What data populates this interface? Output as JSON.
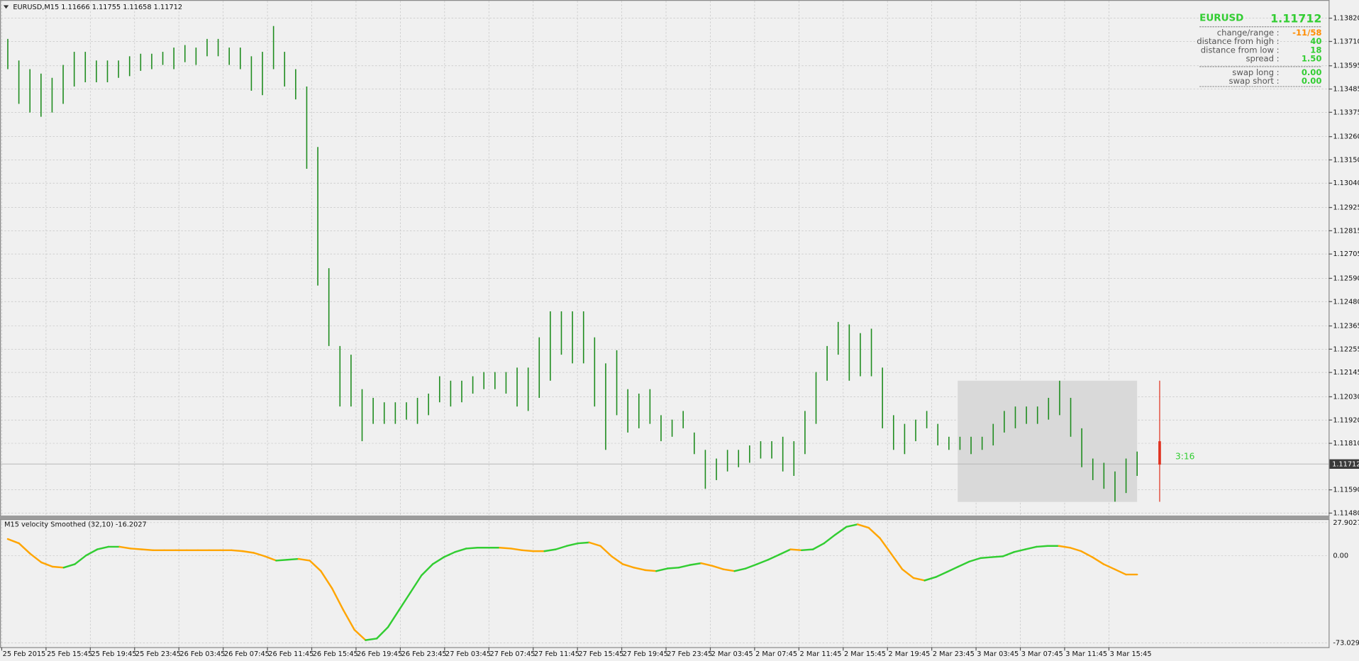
{
  "chart_data": {
    "type": "ohlc",
    "title": "EURUSD,M15  1.11666 1.11755 1.11658 1.11712",
    "x_labels": [
      "25 Feb 2015",
      "25 Feb 15:45",
      "25 Feb 19:45",
      "25 Feb 23:45",
      "26 Feb 03:45",
      "26 Feb 07:45",
      "26 Feb 11:45",
      "26 Feb 15:45",
      "26 Feb 19:45",
      "26 Feb 23:45",
      "27 Feb 03:45",
      "27 Feb 07:45",
      "27 Feb 11:45",
      "27 Feb 15:45",
      "27 Feb 19:45",
      "27 Feb 23:45",
      "2 Mar 03:45",
      "2 Mar 07:45",
      "2 Mar 11:45",
      "2 Mar 15:45",
      "2 Mar 19:45",
      "2 Mar 23:45",
      "3 Mar 03:45",
      "3 Mar 07:45",
      "3 Mar 11:45",
      "3 Mar 15:45"
    ],
    "high": [
      1.13722,
      1.1362,
      1.13579,
      1.13558,
      1.13538,
      1.13599,
      1.13661,
      1.13661,
      1.1362,
      1.1362,
      1.1362,
      1.1364,
      1.13652,
      1.13652,
      1.13661,
      1.13681,
      1.13693,
      1.13681,
      1.13722,
      1.13722,
      1.13681,
      1.13681,
      1.1364,
      1.13661,
      1.13783,
      1.13661,
      1.13579,
      1.13497,
      1.13211,
      1.12638,
      1.1227,
      1.12229,
      1.12066,
      1.12025,
      1.12004,
      1.12004,
      1.12004,
      1.12025,
      1.12045,
      1.12127,
      1.12106,
      1.12106,
      1.12127,
      1.12147,
      1.12147,
      1.12147,
      1.12168,
      1.12168,
      1.12311,
      1.12434,
      1.12434,
      1.12434,
      1.12434,
      1.12311,
      1.12188,
      1.1225,
      1.12066,
      1.12045,
      1.12066,
      1.11943,
      1.11922,
      1.11963,
      1.11861,
      1.11779,
      1.11738,
      1.11779,
      1.11779,
      1.118,
      1.1182,
      1.1182,
      1.11841,
      1.1182,
      1.11963,
      1.12147,
      1.1227,
      1.12384,
      1.12372,
      1.12331,
      1.12352,
      1.12168,
      1.11943,
      1.11902,
      1.11922,
      1.11963,
      1.11902,
      1.11841,
      1.11841,
      1.11841,
      1.11841,
      1.11902,
      1.11963,
      1.11984,
      1.11984,
      1.11984,
      1.12025,
      1.12106,
      1.12025,
      1.11881,
      1.11738,
      1.11718,
      1.11677,
      1.11738,
      1.11771
    ],
    "low": [
      1.13579,
      1.13415,
      1.13374,
      1.13354,
      1.13374,
      1.13415,
      1.13497,
      1.13517,
      1.13517,
      1.13517,
      1.13538,
      1.13546,
      1.13571,
      1.13579,
      1.13599,
      1.13579,
      1.13612,
      1.13599,
      1.1364,
      1.1364,
      1.13599,
      1.13579,
      1.13477,
      1.13456,
      1.13579,
      1.13497,
      1.13436,
      1.13108,
      1.12556,
      1.1227,
      1.11984,
      1.11984,
      1.1182,
      1.11902,
      1.11902,
      1.11902,
      1.11922,
      1.11902,
      1.11943,
      1.12004,
      1.11984,
      1.12004,
      1.12045,
      1.12066,
      1.12066,
      1.12045,
      1.11984,
      1.11963,
      1.12025,
      1.12106,
      1.12229,
      1.12188,
      1.12188,
      1.11984,
      1.11779,
      1.11943,
      1.11861,
      1.11881,
      1.11902,
      1.1182,
      1.11841,
      1.11881,
      1.11759,
      1.11595,
      1.11636,
      1.11677,
      1.11697,
      1.11718,
      1.11738,
      1.11738,
      1.11677,
      1.11656,
      1.11759,
      1.11902,
      1.12106,
      1.12229,
      1.12106,
      1.12127,
      1.12127,
      1.11881,
      1.11779,
      1.11759,
      1.1182,
      1.11881,
      1.118,
      1.11779,
      1.11779,
      1.11759,
      1.11779,
      1.118,
      1.11861,
      1.11881,
      1.11902,
      1.11902,
      1.11922,
      1.11943,
      1.11841,
      1.11697,
      1.11636,
      1.11595,
      1.11534,
      1.11575,
      1.11656
    ],
    "color": "#1e8c1e",
    "ylim": [
      1.11468,
      1.13906
    ],
    "yticks": [
      {
        "value": 1.1382,
        "label": "1.13820"
      },
      {
        "value": 1.1371,
        "label": "1.13710"
      },
      1.13595,
      1.13485,
      1.13375,
      {
        "value": 1.1326,
        "label": "1.13260"
      },
      {
        "value": 1.1315,
        "label": "1.13150"
      },
      {
        "value": 1.1304,
        "label": "1.13040"
      },
      1.12925,
      1.12815,
      1.12705,
      {
        "value": 1.1259,
        "label": "1.12590"
      },
      {
        "value": 1.1248,
        "label": "1.12480"
      },
      1.12365,
      1.12255,
      1.12145,
      {
        "value": 1.1203,
        "label": "1.12030"
      },
      {
        "value": 1.1192,
        "label": "1.11920"
      },
      {
        "value": 1.1181,
        "label": "1.11810"
      },
      {
        "value": 1.1159,
        "label": "1.11590"
      },
      {
        "value": 1.1148,
        "label": "1.11480"
      }
    ],
    "grid": true,
    "last_price": 1.11712,
    "countdown": "3:16",
    "countdown_color": "#32cd32",
    "range_box": {
      "high": 1.12106,
      "low": 1.11533,
      "color": "#d9d9d9"
    },
    "info_panel": {
      "symbol": "EURUSD",
      "price": 1.11712,
      "color": "#32cd32",
      "rows": [
        {
          "label": "change/range :",
          "value": "-11/58",
          "color": "#ff8c00"
        },
        {
          "label": "distance from high :",
          "value": 40,
          "color": "#32cd32"
        },
        {
          "label": "distance from low :",
          "value": 18,
          "color": "#32cd32"
        },
        {
          "label": "spread :",
          "value": "1.50",
          "color": "#32cd32"
        }
      ],
      "swap_rows": [
        {
          "label": "swap long :",
          "value": "0.00",
          "color": "#32cd32"
        },
        {
          "label": "swap short :",
          "value": "0.00",
          "color": "#32cd32"
        }
      ]
    },
    "indicator": {
      "type": "line",
      "title": "M15 velocity Smoothed (32,10) -16.2027",
      "values": [
        14.1,
        10.5,
        1.8,
        -5.5,
        -9.1,
        -9.9,
        -7.0,
        0.3,
        5.4,
        7.6,
        7.6,
        6.1,
        5.4,
        4.7,
        4.7,
        4.7,
        4.7,
        4.7,
        4.7,
        4.7,
        4.7,
        3.9,
        2.5,
        -0.4,
        -4.0,
        -3.3,
        -2.6,
        -4.0,
        -12.8,
        -27.3,
        -45.4,
        -62.1,
        -70.8,
        -69.4,
        -59.9,
        -45.4,
        -30.9,
        -16.4,
        -7.0,
        -1.1,
        3.2,
        6.1,
        6.8,
        6.8,
        6.8,
        6.1,
        4.7,
        3.9,
        3.9,
        5.4,
        8.3,
        10.5,
        11.2,
        8.3,
        -0.4,
        -7.0,
        -9.9,
        -12.0,
        -12.8,
        -10.6,
        -9.9,
        -7.7,
        -6.2,
        -8.4,
        -11.3,
        -12.8,
        -10.6,
        -7.0,
        -3.3,
        1.0,
        5.4,
        4.7,
        5.4,
        10.5,
        17.7,
        24.3,
        26.4,
        23.5,
        14.8,
        1.8,
        -11.3,
        -18.6,
        -20.7,
        -17.8,
        -13.5,
        -9.1,
        -4.8,
        -1.9,
        -1.1,
        -0.4,
        3.2,
        5.4,
        7.6,
        8.3,
        8.3,
        6.8,
        3.9,
        -1.1,
        -7.0,
        -11.3,
        -15.7,
        -15.7
      ],
      "up_color": "#32cd32",
      "down_color": "#ffa500",
      "ylim": [
        -73.0292,
        27.9027
      ],
      "yticks": [
        27.9027,
        {
          "value": 0,
          "label": "0.00"
        },
        -73.0292
      ]
    }
  }
}
